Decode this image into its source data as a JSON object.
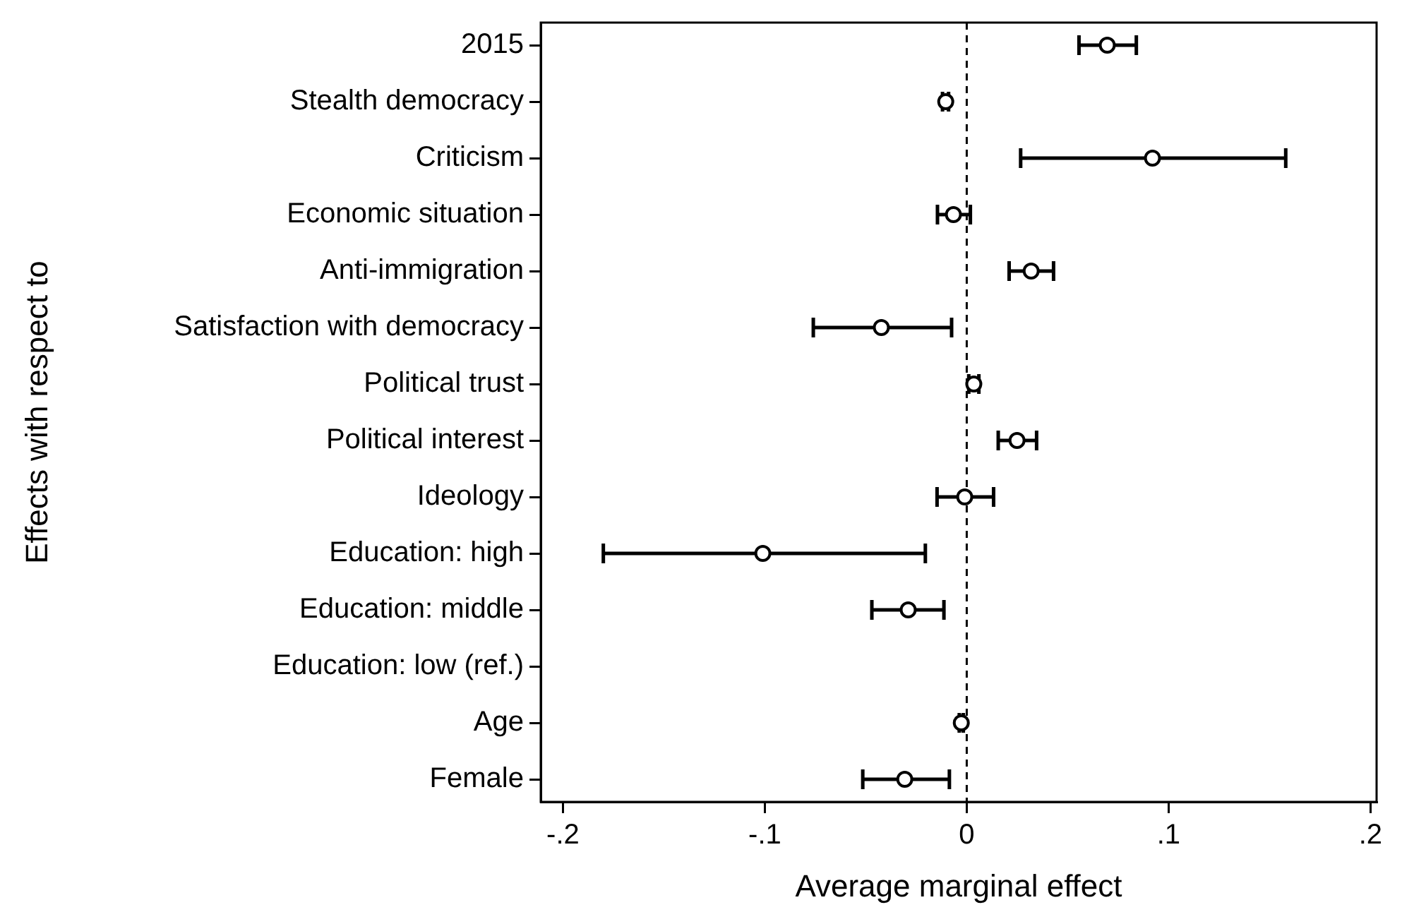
{
  "chart_data": {
    "type": "scatter",
    "orientation": "horizontal",
    "xlabel": "Average marginal effect",
    "ylabel": "Effects with respect to",
    "categories": [
      "2015",
      "Stealth democracy",
      "Criticism",
      "Economic situation",
      "Anti-immigration",
      "Satisfaction with democracy",
      "Political trust",
      "Political interest",
      "Ideology",
      "Education: high",
      "Education: middle",
      "Education: low (ref.)",
      "Age",
      "Female"
    ],
    "values": [
      0.0696,
      -0.0104,
      0.092,
      -0.0066,
      0.0319,
      -0.0423,
      0.0035,
      0.0249,
      -0.001,
      -0.101,
      -0.029,
      null,
      -0.0027,
      -0.0307
    ],
    "errors": [
      [
        0.0556,
        0.084
      ],
      [
        -0.012,
        -0.009
      ],
      [
        0.0267,
        0.158
      ],
      [
        -0.0145,
        0.0018
      ],
      [
        0.021,
        0.043
      ],
      [
        -0.076,
        -0.0075
      ],
      [
        0.001,
        0.006
      ],
      [
        0.0156,
        0.0346
      ],
      [
        -0.0147,
        0.0133
      ],
      [
        -0.18,
        -0.0205
      ],
      [
        -0.047,
        -0.0113
      ],
      null,
      [
        -0.0037,
        -0.0017
      ],
      [
        -0.0515,
        -0.0086
      ]
    ],
    "color": "#000000",
    "marker": "circle",
    "grid": false,
    "legend": false,
    "xlim": [
      -0.211,
      0.203
    ],
    "xticks": [
      {
        "value": -0.2,
        "label": "-.2"
      },
      {
        "value": -0.1,
        "label": "-.1"
      },
      0,
      {
        "value": 0.1,
        "label": ".1"
      },
      {
        "value": 0.2,
        "label": ".2"
      }
    ],
    "ref_lines": [
      {
        "axis": "x",
        "value": 0,
        "line_style": "dashed",
        "color": "#000000"
      }
    ]
  }
}
